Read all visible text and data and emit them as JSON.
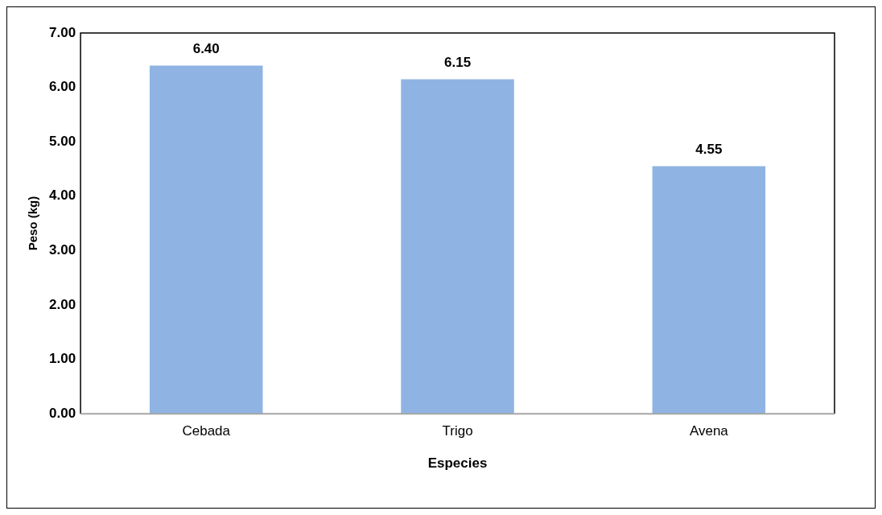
{
  "chart_data": {
    "type": "bar",
    "xlabel": "Especies",
    "ylabel": "Peso (kg)",
    "categories": [
      "Cebada",
      "Trigo",
      "Avena"
    ],
    "values": [
      6.4,
      6.15,
      4.55
    ],
    "color": "#8fb4e3",
    "ylim": [
      0,
      7
    ],
    "yticks": [
      {
        "value": 0,
        "label": "0.00"
      },
      {
        "value": 1,
        "label": "1.00"
      },
      {
        "value": 2,
        "label": "2.00"
      },
      {
        "value": 3,
        "label": "3.00"
      },
      {
        "value": 4,
        "label": "4.00"
      },
      {
        "value": 5,
        "label": "5.00"
      },
      {
        "value": 6,
        "label": "6.00"
      },
      {
        "value": 7,
        "label": "7.00"
      }
    ],
    "value_labels": [
      "6.40",
      "6.15",
      "4.55"
    ],
    "grid": false,
    "legend": false
  }
}
